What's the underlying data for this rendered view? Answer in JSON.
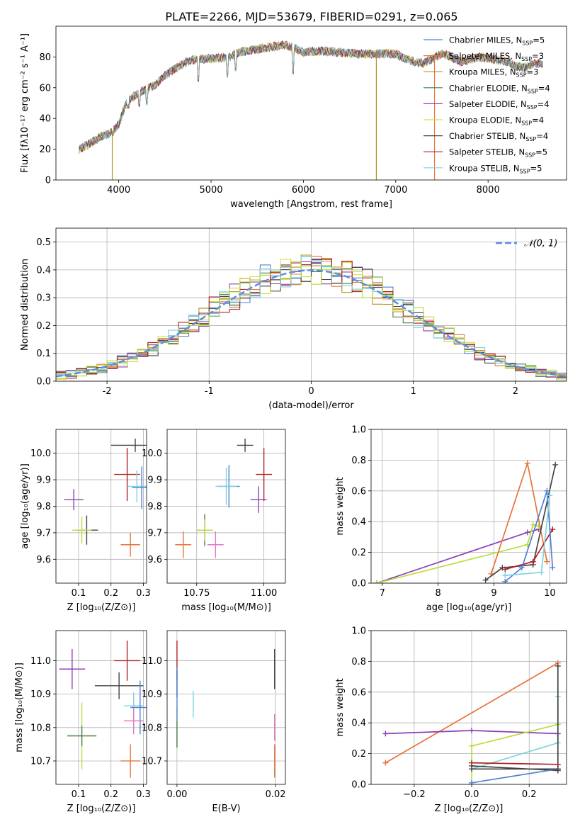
{
  "figure": {
    "title": "PLATE=2266, MJD=53679, FIBERID=0291, z=0.065"
  },
  "colors": {
    "Chabrier MILES": "#4f81d6",
    "Salpeter MILES": "#e8743b",
    "Kroupa MILES": "#b0921e",
    "Chabrier ELODIE": "#4a7c59",
    "Salpeter ELODIE": "#8e3fb3",
    "Kroupa ELODIE": "#d4e04a",
    "Chabrier STELIB": "#444444",
    "Salpeter STELIB": "#b22222",
    "Kroupa STELIB": "#7fd3e0",
    "pink": "#e377c2",
    "lime": "#bcdc3c"
  },
  "chart_data": [
    {
      "id": "spectrum",
      "type": "line",
      "xlabel": "wavelength [Angstrom, rest frame]",
      "ylabel": "Flux [fλ10⁻¹⁷ erg cm⁻² s⁻¹ A⁻¹]",
      "xlim": [
        3320,
        8850
      ],
      "ylim": [
        0,
        100
      ],
      "xticks": [
        4000,
        5000,
        6000,
        7000,
        8000
      ],
      "yticks": [
        0,
        20,
        40,
        60,
        80
      ],
      "grid": false,
      "legend_position": "top-right",
      "legend": [
        "Chabrier MILES, N_SSP=5",
        "Salpeter MILES, N_SSP=3",
        "Kroupa MILES, N_SSP=3",
        "Chabrier ELODIE, N_SSP=4",
        "Salpeter ELODIE, N_SSP=4",
        "Kroupa ELODIE, N_SSP=4",
        "Chabrier STELIB, N_SSP=4",
        "Salpeter STELIB, N_SSP=5",
        "Kroupa STELIB, N_SSP=5"
      ],
      "legend_parts": [
        [
          "Chabrier MILES, N",
          "SSP",
          "=5"
        ],
        [
          "Salpeter MILES, N",
          "SSP",
          "=3"
        ],
        [
          "Kroupa MILES, N",
          "SSP",
          "=3"
        ],
        [
          "Chabrier ELODIE, N",
          "SSP",
          "=4"
        ],
        [
          "Salpeter ELODIE, N",
          "SSP",
          "=4"
        ],
        [
          "Kroupa ELODIE, N",
          "SSP",
          "=4"
        ],
        [
          "Chabrier STELIB, N",
          "SSP",
          "=4"
        ],
        [
          "Salpeter STELIB, N",
          "SSP",
          "=5"
        ],
        [
          "Kroupa STELIB, N",
          "SSP",
          "=5"
        ]
      ],
      "continuum": [
        [
          3570,
          20
        ],
        [
          3700,
          24
        ],
        [
          3800,
          28
        ],
        [
          3900,
          30
        ],
        [
          4000,
          36
        ],
        [
          4050,
          45
        ],
        [
          4100,
          52
        ],
        [
          4200,
          56
        ],
        [
          4300,
          59
        ],
        [
          4400,
          62
        ],
        [
          4500,
          68
        ],
        [
          4600,
          72
        ],
        [
          4700,
          76
        ],
        [
          4800,
          78
        ],
        [
          5000,
          79
        ],
        [
          5200,
          80
        ],
        [
          5300,
          83
        ],
        [
          5400,
          84
        ],
        [
          5600,
          86
        ],
        [
          5800,
          88
        ],
        [
          5900,
          86
        ],
        [
          6000,
          83
        ],
        [
          6200,
          84
        ],
        [
          6400,
          83
        ],
        [
          6600,
          82
        ],
        [
          6800,
          82
        ],
        [
          7000,
          82
        ],
        [
          7100,
          79
        ],
        [
          7200,
          77
        ],
        [
          7300,
          76
        ],
        [
          7400,
          79
        ],
        [
          7500,
          82
        ],
        [
          7600,
          80
        ],
        [
          7700,
          77
        ],
        [
          7800,
          78
        ],
        [
          7900,
          80
        ],
        [
          8000,
          79
        ],
        [
          8200,
          77
        ],
        [
          8300,
          74
        ],
        [
          8400,
          73
        ],
        [
          8500,
          76
        ],
        [
          8600,
          75
        ]
      ],
      "absorption_lines": [
        [
          3934,
          30
        ],
        [
          4101,
          48
        ],
        [
          4226,
          49
        ],
        [
          4304,
          50
        ],
        [
          4861,
          65
        ],
        [
          5175,
          68
        ],
        [
          5270,
          72
        ],
        [
          5890,
          70
        ]
      ],
      "spikes": [
        {
          "x": 3930,
          "color": "Kroupa MILES"
        },
        {
          "x": 6790,
          "color": "Kroupa MILES"
        },
        {
          "x": 7420,
          "color": "Salpeter MILES"
        }
      ]
    },
    {
      "id": "residuals",
      "type": "histogram",
      "xlabel": "(data-model)/error",
      "ylabel": "Normed distribution",
      "xlim": [
        -2.5,
        2.5
      ],
      "ylim": [
        0,
        0.55
      ],
      "xticks": [
        -2,
        -1,
        0,
        1,
        2
      ],
      "yticks": [
        0.0,
        0.1,
        0.2,
        0.3,
        0.4,
        0.5
      ],
      "grid": true,
      "legend_position": "top-right",
      "legend": [
        "𝒩(0, 1)"
      ],
      "bin_width": 0.1,
      "gaussian": {
        "mean": 0,
        "sigma": 1,
        "color": "#5b8ee0"
      }
    },
    {
      "id": "age-vs-Z",
      "type": "errorbar",
      "xlabel": "Z [log₁₀(Z/Z⊙)]",
      "ylabel": "age  [log₁₀(age/yr)]",
      "xlim": [
        0.03,
        0.31
      ],
      "ylim": [
        9.51,
        10.09
      ],
      "xticks": [
        0.1,
        0.2,
        0.3
      ],
      "yticks": [
        9.6,
        9.7,
        9.8,
        9.9,
        10.0
      ],
      "grid": true,
      "points": [
        {
          "x": 0.275,
          "y": 10.03,
          "xerr": 0.075,
          "yerr": 0.025,
          "color": "Chabrier STELIB"
        },
        {
          "x": 0.25,
          "y": 9.92,
          "xerr": 0.04,
          "yerr": 0.1,
          "color": "Salpeter STELIB"
        },
        {
          "x": 0.28,
          "y": 9.875,
          "xerr": 0.03,
          "yerr": 0.06,
          "color": "Kroupa STELIB"
        },
        {
          "x": 0.295,
          "y": 9.87,
          "xerr": 0.03,
          "yerr": 0.08,
          "color": "Chabrier MILES"
        },
        {
          "x": 0.085,
          "y": 9.825,
          "xerr": 0.03,
          "yerr": 0.04,
          "color": "Salpeter ELODIE"
        },
        {
          "x": 0.125,
          "y": 9.71,
          "xerr": 0.035,
          "yerr": 0.055,
          "color": "Chabrier STELIB"
        },
        {
          "x": 0.11,
          "y": 9.71,
          "xerr": 0.03,
          "yerr": 0.05,
          "color": "lime"
        },
        {
          "x": 0.26,
          "y": 9.655,
          "xerr": 0.03,
          "yerr": 0.045,
          "color": "Salpeter MILES"
        }
      ]
    },
    {
      "id": "age-vs-mass",
      "type": "errorbar",
      "xlabel": "mass [log₁₀(M/M⊙)]",
      "xlim": [
        10.64,
        11.08
      ],
      "ylim": [
        9.51,
        10.09
      ],
      "xticks": [
        10.75,
        11.0
      ],
      "yticks": [
        9.6,
        9.7,
        9.8,
        9.9,
        10.0
      ],
      "grid": true,
      "points": [
        {
          "x": 10.93,
          "y": 10.03,
          "xerr": 0.03,
          "yerr": 0.025,
          "color": "Chabrier STELIB"
        },
        {
          "x": 11.0,
          "y": 9.92,
          "xerr": 0.03,
          "yerr": 0.1,
          "color": "Salpeter STELIB"
        },
        {
          "x": 10.87,
          "y": 9.875,
          "xerr": 0.04,
          "yerr": 0.08,
          "color": "Chabrier MILES"
        },
        {
          "x": 10.86,
          "y": 9.875,
          "xerr": 0.04,
          "yerr": 0.07,
          "color": "Kroupa STELIB"
        },
        {
          "x": 10.98,
          "y": 9.825,
          "xerr": 0.03,
          "yerr": 0.05,
          "color": "Salpeter ELODIE"
        },
        {
          "x": 10.78,
          "y": 9.71,
          "xerr": 0.03,
          "yerr": 0.06,
          "color": "Chabrier ELODIE"
        },
        {
          "x": 10.78,
          "y": 9.71,
          "xerr": 0.03,
          "yerr": 0.04,
          "color": "lime"
        },
        {
          "x": 10.82,
          "y": 9.655,
          "xerr": 0.03,
          "yerr": 0.05,
          "color": "pink"
        },
        {
          "x": 10.7,
          "y": 9.655,
          "xerr": 0.03,
          "yerr": 0.05,
          "color": "Salpeter MILES"
        }
      ]
    },
    {
      "id": "weight-vs-age",
      "type": "line",
      "xlabel": "age  [log₁₀(age/yr)]",
      "ylabel": "mass weight",
      "xlim": [
        6.8,
        10.3
      ],
      "ylim": [
        0,
        1.0
      ],
      "xticks": [
        7,
        8,
        9,
        10
      ],
      "yticks": [
        0.0,
        0.2,
        0.4,
        0.6,
        0.8,
        1.0
      ],
      "grid": true,
      "series": [
        {
          "color": "Salpeter ELODIE",
          "x": [
            6.9,
            9.6,
            9.8
          ],
          "y": [
            0.0,
            0.33,
            0.35
          ]
        },
        {
          "color": "lime",
          "x": [
            6.9,
            9.6,
            9.7,
            9.8
          ],
          "y": [
            0.0,
            0.25,
            0.38,
            0.37
          ]
        },
        {
          "color": "Salpeter MILES",
          "x": [
            8.95,
            9.6,
            9.95
          ],
          "y": [
            0.06,
            0.78,
            0.14
          ]
        },
        {
          "color": "Chabrier STELIB",
          "x": [
            8.85,
            9.15,
            9.7,
            10.1
          ],
          "y": [
            0.02,
            0.1,
            0.12,
            0.77
          ]
        },
        {
          "color": "Salpeter STELIB",
          "x": [
            9.2,
            9.7,
            10.05
          ],
          "y": [
            0.09,
            0.14,
            0.35
          ]
        },
        {
          "color": "Chabrier MILES",
          "x": [
            9.2,
            9.5,
            9.95,
            10.05
          ],
          "y": [
            0.01,
            0.1,
            0.6,
            0.1
          ]
        },
        {
          "color": "Kroupa STELIB",
          "x": [
            9.2,
            9.85,
            10.0
          ],
          "y": [
            0.05,
            0.07,
            0.57
          ]
        }
      ]
    },
    {
      "id": "mass-vs-Z",
      "type": "errorbar",
      "xlabel": "Z [log₁₀(Z/Z⊙)]",
      "ylabel": "mass [log₁₀(M/M⊙)]",
      "xlim": [
        0.03,
        0.31
      ],
      "ylim": [
        10.63,
        11.09
      ],
      "xticks": [
        0.1,
        0.2,
        0.3
      ],
      "yticks": [
        10.7,
        10.8,
        10.9,
        11.0
      ],
      "grid": true,
      "points": [
        {
          "x": 0.25,
          "y": 11.0,
          "xerr": 0.04,
          "yerr": 0.06,
          "color": "Salpeter STELIB"
        },
        {
          "x": 0.08,
          "y": 10.975,
          "xerr": 0.04,
          "yerr": 0.06,
          "color": "Salpeter ELODIE"
        },
        {
          "x": 0.225,
          "y": 10.925,
          "xerr": 0.075,
          "yerr": 0.04,
          "color": "Chabrier STELIB"
        },
        {
          "x": 0.27,
          "y": 10.865,
          "xerr": 0.03,
          "yerr": 0.04,
          "color": "Kroupa STELIB"
        },
        {
          "x": 0.29,
          "y": 10.86,
          "xerr": 0.03,
          "yerr": 0.08,
          "color": "Chabrier MILES"
        },
        {
          "x": 0.27,
          "y": 10.82,
          "xerr": 0.03,
          "yerr": 0.04,
          "color": "pink"
        },
        {
          "x": 0.11,
          "y": 10.775,
          "xerr": 0.045,
          "yerr": 0.1,
          "color": "lime"
        },
        {
          "x": 0.11,
          "y": 10.775,
          "xerr": 0.045,
          "yerr": 0.03,
          "color": "Chabrier ELODIE"
        },
        {
          "x": 0.26,
          "y": 10.7,
          "xerr": 0.03,
          "yerr": 0.05,
          "color": "Salpeter MILES"
        }
      ]
    },
    {
      "id": "mass-vs-ebv",
      "type": "errorbar",
      "xlabel": "E(B-V)",
      "xlim": [
        -0.002,
        0.022
      ],
      "ylim": [
        10.63,
        11.09
      ],
      "xticks": [
        0.0,
        0.02
      ],
      "xtick_labels": [
        "0.00",
        "0.02"
      ],
      "yticks": [
        10.7,
        10.8,
        10.9,
        11.0
      ],
      "grid": true,
      "points": [
        {
          "x": 0.0,
          "y": 11.0,
          "xerr": 0,
          "yerr": 0.06,
          "color": "Salpeter STELIB"
        },
        {
          "x": 0.0,
          "y": 10.93,
          "xerr": 0,
          "yerr": 0.04,
          "color": "Chabrier STELIB"
        },
        {
          "x": 0.0,
          "y": 10.8,
          "xerr": 0,
          "yerr": 0.06,
          "color": "lime"
        },
        {
          "x": 0.0,
          "y": 10.9,
          "xerr": 0,
          "yerr": 0.08,
          "color": "Chabrier MILES"
        },
        {
          "x": 0.0,
          "y": 10.78,
          "xerr": 0,
          "yerr": 0.04,
          "color": "Chabrier ELODIE"
        },
        {
          "x": 0.0033,
          "y": 10.87,
          "xerr": 0,
          "yerr": 0.04,
          "color": "Kroupa STELIB"
        },
        {
          "x": 0.0198,
          "y": 10.8,
          "xerr": 0,
          "yerr": 0.04,
          "color": "pink"
        },
        {
          "x": 0.0198,
          "y": 10.7,
          "xerr": 0,
          "yerr": 0.05,
          "color": "Salpeter MILES"
        },
        {
          "x": 0.0198,
          "y": 10.975,
          "xerr": 0,
          "yerr": 0.06,
          "color": "Chabrier STELIB"
        }
      ]
    },
    {
      "id": "weight-vs-Z",
      "type": "line",
      "xlabel": "Z [log₁₀(Z/Z⊙)]",
      "ylabel": "mass weight",
      "xlim": [
        -0.35,
        0.33
      ],
      "ylim": [
        0,
        1.0
      ],
      "xticks": [
        -0.2,
        0.0,
        0.2
      ],
      "xtick_labels": [
        "−0.2",
        "0.0",
        "0.2"
      ],
      "yticks": [
        0.0,
        0.2,
        0.4,
        0.6,
        0.8,
        1.0
      ],
      "grid": true,
      "series": [
        {
          "color": "Salpeter MILES",
          "x": [
            -0.3,
            0.3
          ],
          "y": [
            0.14,
            0.79
          ]
        },
        {
          "color": "Salpeter ELODIE",
          "x": [
            -0.3,
            0.0,
            0.3
          ],
          "y": [
            0.33,
            0.35,
            0.33
          ]
        },
        {
          "color": "lime",
          "x": [
            0.0,
            0.0,
            0.3
          ],
          "y": [
            0.0,
            0.25,
            0.39
          ]
        },
        {
          "color": "Kroupa STELIB",
          "x": [
            0.0,
            0.3,
            0.3
          ],
          "y": [
            0.1,
            0.27,
            0.57
          ]
        },
        {
          "color": "Chabrier STELIB",
          "x": [
            0.0,
            0.3,
            0.3
          ],
          "y": [
            0.12,
            0.09,
            0.77
          ]
        },
        {
          "color": "Salpeter STELIB",
          "x": [
            0.0,
            0.3
          ],
          "y": [
            0.14,
            0.13
          ]
        },
        {
          "color": "Chabrier MILES",
          "x": [
            0.0,
            0.3
          ],
          "y": [
            0.01,
            0.1
          ]
        },
        {
          "color": "Chabrier STELIB",
          "x": [
            0.0,
            0.3
          ],
          "y": [
            0.1,
            0.1
          ]
        }
      ]
    }
  ]
}
